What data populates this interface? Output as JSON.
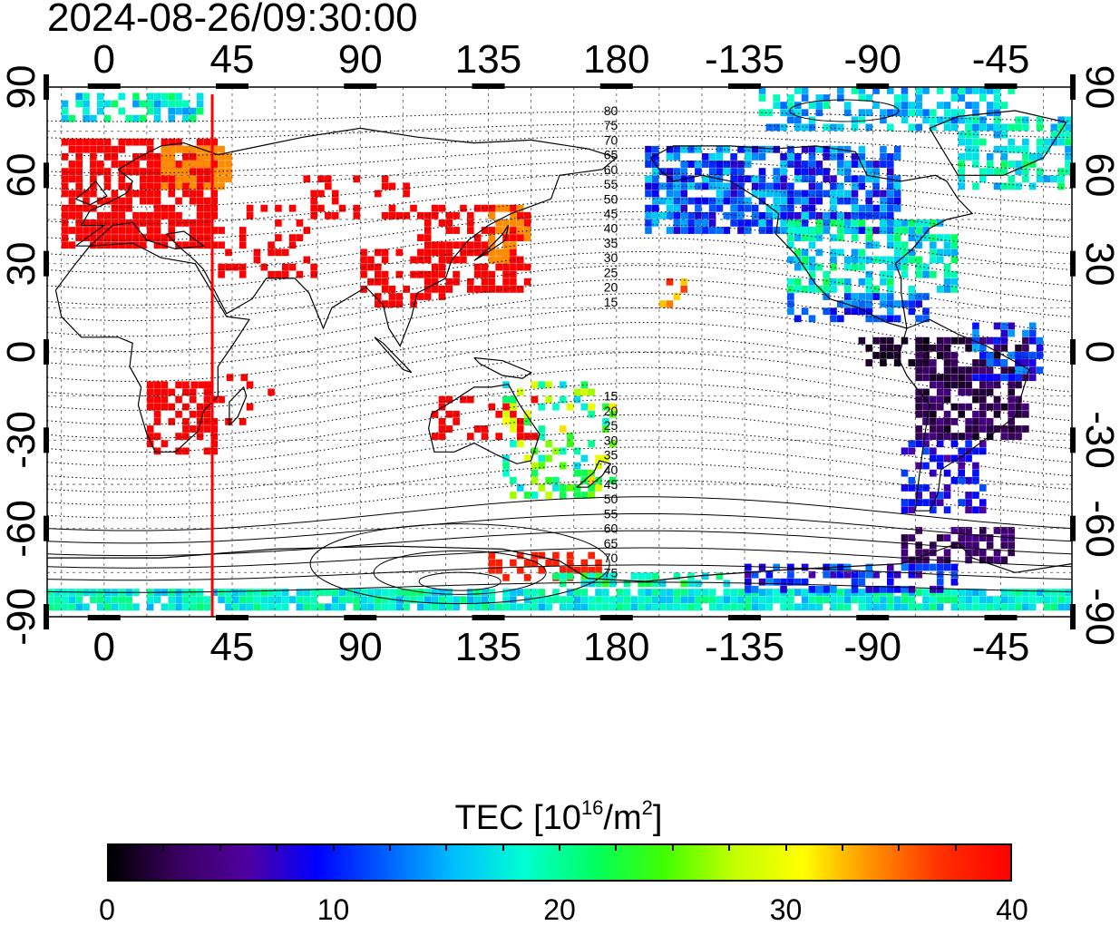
{
  "title": "2024-08-26/09:30:00",
  "x_axis_ticks": [
    "0",
    "45",
    "90",
    "135",
    "180",
    "-135",
    "-90",
    "-45"
  ],
  "x_axis_tick_lons": [
    0,
    45,
    90,
    135,
    180,
    225,
    270,
    315
  ],
  "y_axis_ticks": [
    "90",
    "60",
    "30",
    "0",
    "-30",
    "-60",
    "-90"
  ],
  "y_axis_tick_lats": [
    90,
    60,
    30,
    0,
    -30,
    -60,
    -90
  ],
  "lon_range": [
    -20,
    340
  ],
  "lat_range": [
    -90,
    90
  ],
  "marker_line": {
    "longitude": 38,
    "color": "#ff0000"
  },
  "contour_labels": [
    "80",
    "75",
    "70",
    "65",
    "60",
    "55",
    "50",
    "45",
    "40",
    "35",
    "30",
    "25",
    "20",
    "15",
    "15",
    "20",
    "25",
    "30",
    "35",
    "40",
    "45",
    "50",
    "55",
    "60",
    "65",
    "70",
    "75"
  ],
  "colorbar": {
    "title_main": "TEC  [10",
    "title_exp": "16",
    "title_mid": "/m",
    "title_exp2": "2",
    "title_end": "]",
    "ticks": [
      "0",
      "10",
      "20",
      "30",
      "40"
    ],
    "tick_values": [
      0,
      10,
      20,
      30,
      40
    ],
    "range": [
      0,
      40
    ],
    "colors": [
      "#000000",
      "#3a0060",
      "#5000a0",
      "#0000ff",
      "#0060ff",
      "#00c0ff",
      "#00ffd0",
      "#00ff60",
      "#40ff00",
      "#c0ff00",
      "#ffff00",
      "#ff9000",
      "#ff3000",
      "#ff0000"
    ]
  }
}
